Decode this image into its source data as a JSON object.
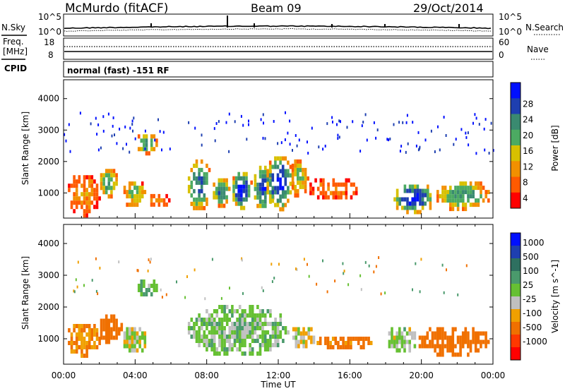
{
  "header": {
    "station": "McMurdo (fitACF)",
    "beam": "Beam 09",
    "date": "29/Oct/2014"
  },
  "status_panel": {
    "nsky_label": "N.Sky",
    "nsearch_label": "N.Search",
    "noise_ticks": [
      "10^5",
      "10^0"
    ],
    "freq_label": "Freq.",
    "freq_unit": "[MHz]",
    "freq_ticks": [
      "18",
      "8"
    ],
    "nave_label": "Nave",
    "nave_ticks": [
      "60",
      "0"
    ],
    "cpid_label": "CPID",
    "cpid_value": "normal (fast) -151 RF"
  },
  "colors": {
    "power_scale": [
      "#0010ff",
      "#1e3fb0",
      "#3a8a70",
      "#4caa62",
      "#d8c000",
      "#f29000",
      "#ff5a00",
      "#ff0000"
    ],
    "velocity_scale": [
      "#0010ff",
      "#1e3fb0",
      "#2e7060",
      "#4a9a6c",
      "#66c033",
      "#c0c0c0",
      "#f0a000",
      "#f07000",
      "#ff3800",
      "#ff0000"
    ],
    "ground_scatter": "#888888"
  },
  "chart_data": [
    {
      "type": "heatmap",
      "name": "power",
      "xlabel": "",
      "ylabel": "Slant Range [km]",
      "x_range_hours": [
        0,
        24
      ],
      "ylim": [
        200,
        4600
      ],
      "y_ticks": [
        1000,
        2000,
        3000,
        4000
      ],
      "colorbar": {
        "label": "Power [dB]",
        "ticks": [
          "4",
          "8",
          "12",
          "16",
          "20",
          "24",
          "28"
        ],
        "range": [
          0,
          30
        ]
      },
      "regions": [
        {
          "t": [
            0.1,
            2.0
          ],
          "r": [
            300,
            1700
          ],
          "peak": 10
        },
        {
          "t": [
            1.9,
            3.0
          ],
          "r": [
            900,
            1900
          ],
          "peak": 20
        },
        {
          "t": [
            3.2,
            4.6
          ],
          "r": [
            600,
            1500
          ],
          "peak": 16
        },
        {
          "t": [
            4.0,
            5.2
          ],
          "r": [
            2300,
            3000
          ],
          "peak": 20
        },
        {
          "t": [
            4.7,
            5.9
          ],
          "r": [
            600,
            1100
          ],
          "peak": 10
        },
        {
          "t": [
            6.8,
            8.2
          ],
          "r": [
            500,
            2200
          ],
          "peak": 24
        },
        {
          "t": [
            8.2,
            9.3
          ],
          "r": [
            600,
            1600
          ],
          "peak": 22
        },
        {
          "t": [
            9.3,
            10.5
          ],
          "r": [
            500,
            1800
          ],
          "peak": 28
        },
        {
          "t": [
            10.5,
            11.7
          ],
          "r": [
            450,
            2000
          ],
          "peak": 26
        },
        {
          "t": [
            11.2,
            12.8
          ],
          "r": [
            500,
            2300
          ],
          "peak": 28
        },
        {
          "t": [
            12.6,
            13.6
          ],
          "r": [
            900,
            2200
          ],
          "peak": 16
        },
        {
          "t": [
            13.6,
            16.5
          ],
          "r": [
            800,
            1600
          ],
          "peak": 8
        },
        {
          "t": [
            18.3,
            20.7
          ],
          "r": [
            400,
            1400
          ],
          "peak": 28
        },
        {
          "t": [
            20.7,
            23.8
          ],
          "r": [
            500,
            1500
          ],
          "peak": 20
        }
      ]
    },
    {
      "type": "heatmap",
      "name": "velocity",
      "xlabel": "Time UT",
      "ylabel": "Slant Range [km]",
      "x_ticks": [
        "00:00",
        "04:00",
        "08:00",
        "12:00",
        "16:00",
        "20:00",
        "00:00"
      ],
      "x_range_hours": [
        0,
        24
      ],
      "ylim": [
        200,
        4600
      ],
      "y_ticks": [
        1000,
        2000,
        3000,
        4000
      ],
      "colorbar": {
        "label": "Velocity [m s^-1]",
        "ticks": [
          "1000",
          "500",
          "100",
          "25",
          "-25",
          "-100",
          "-500",
          "-1000"
        ],
        "range": [
          -1000,
          1000
        ]
      },
      "regions": [
        {
          "t": [
            0.1,
            2.0
          ],
          "r": [
            500,
            1600
          ],
          "v": -100
        },
        {
          "t": [
            1.9,
            3.2
          ],
          "r": [
            900,
            1900
          ],
          "v": -200
        },
        {
          "t": [
            3.2,
            4.6
          ],
          "r": [
            600,
            1500
          ],
          "v": 20
        },
        {
          "t": [
            4.0,
            5.2
          ],
          "r": [
            2400,
            3000
          ],
          "v": 80
        },
        {
          "t": [
            6.8,
            12.5
          ],
          "r": [
            500,
            2200
          ],
          "v": 60
        },
        {
          "t": [
            12.5,
            14.0
          ],
          "r": [
            700,
            1500
          ],
          "v": -10
        },
        {
          "t": [
            14.0,
            17.2
          ],
          "r": [
            700,
            1200
          ],
          "v": -150
        },
        {
          "t": [
            18.0,
            19.7
          ],
          "r": [
            600,
            1500
          ],
          "v": 40
        },
        {
          "t": [
            19.7,
            23.8
          ],
          "r": [
            500,
            1500
          ],
          "v": -200
        }
      ]
    }
  ]
}
